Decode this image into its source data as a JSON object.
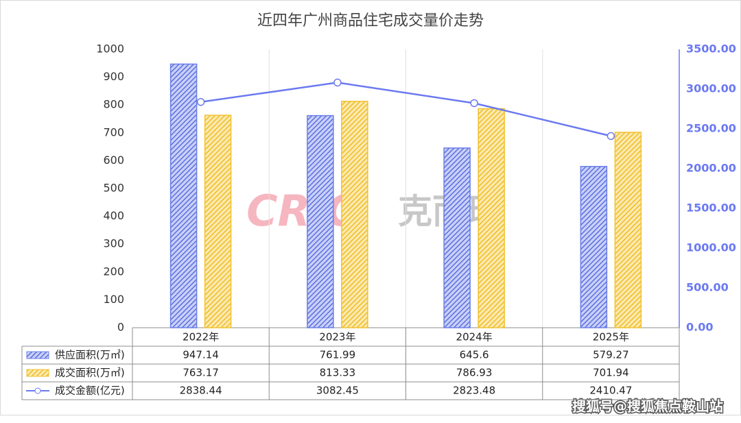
{
  "chart_data": {
    "type": "bar",
    "title": "近四年广州商品住宅成交量价走势",
    "categories": [
      "2022年",
      "2023年",
      "2024年",
      "2025年"
    ],
    "series": [
      {
        "name": "供应面积(万㎡)",
        "color": "#6a7ee8",
        "type": "bar",
        "values": [
          947.14,
          761.99,
          645.6,
          579.27
        ]
      },
      {
        "name": "成交面积(万㎡)",
        "color": "#f2c12e",
        "type": "bar",
        "values": [
          763.17,
          813.33,
          786.93,
          701.94
        ]
      },
      {
        "name": "成交金额(亿元)",
        "color": "#6b79f0",
        "type": "line",
        "axis": "y2",
        "values": [
          2838.44,
          3082.45,
          2823.48,
          2410.47
        ]
      }
    ],
    "ylim": [
      0,
      1000
    ],
    "yticks": [
      0,
      100,
      200,
      300,
      400,
      500,
      600,
      700,
      800,
      900,
      1000
    ],
    "y2lim": [
      0,
      3500
    ],
    "y2ticks": [
      {
        "value": 0,
        "label": "0.00"
      },
      {
        "value": 500,
        "label": "500.00"
      },
      {
        "value": 1000,
        "label": "1000.00"
      },
      {
        "value": 1500,
        "label": "1500.00"
      },
      {
        "value": 2000,
        "label": "2000.00"
      },
      {
        "value": 2500,
        "label": "2500.00"
      },
      {
        "value": 3000,
        "label": "3000.00"
      },
      {
        "value": 3500,
        "label": "3500.00"
      }
    ],
    "watermark": [
      "CRIC",
      "克而瑞"
    ],
    "source": "搜狐号@搜狐焦点鞍山站"
  }
}
